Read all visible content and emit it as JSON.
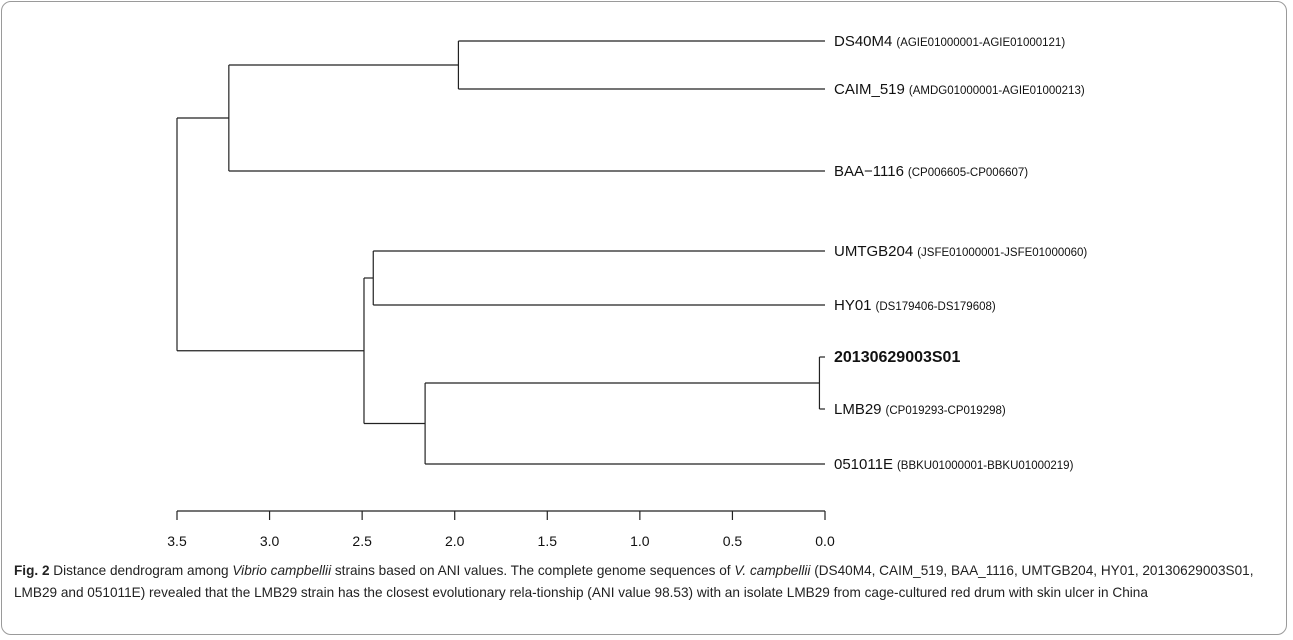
{
  "chart_data": {
    "type": "dendrogram",
    "axis": {
      "ticks": [
        "3.5",
        "3.0",
        "2.5",
        "2.0",
        "1.5",
        "1.0",
        "0.5",
        "0.0"
      ],
      "range": [
        3.5,
        0.0
      ]
    },
    "leaves": [
      {
        "id": "ds40m4",
        "name": "DS40M4",
        "accession": "(AGIE01000001-AGIE01000121)",
        "bold": false
      },
      {
        "id": "caim519",
        "name": "CAIM_519",
        "accession": "(AMDG01000001-AGIE01000213)",
        "bold": false
      },
      {
        "id": "baa1116",
        "name": "BAA−1116",
        "accession": "(CP006605-CP006607)",
        "bold": false
      },
      {
        "id": "umtgb204",
        "name": "UMTGB204",
        "accession": "(JSFE01000001-JSFE01000060)",
        "bold": false
      },
      {
        "id": "hy01",
        "name": "HY01",
        "accession": "(DS179406-DS179608)",
        "bold": false
      },
      {
        "id": "s01",
        "name": "20130629003S01",
        "accession": "",
        "bold": true
      },
      {
        "id": "lmb29",
        "name": "LMB29",
        "accession": "(CP019293-CP019298)",
        "bold": false
      },
      {
        "id": "e051011",
        "name": "051011E",
        "accession": "(BBKU01000001-BBKU01000219)",
        "bold": false
      }
    ],
    "merges": [
      {
        "id": "m1",
        "height": 1.98,
        "children": [
          "ds40m4",
          "caim519"
        ]
      },
      {
        "id": "m2",
        "height": 3.22,
        "children": [
          "m1",
          "baa1116"
        ]
      },
      {
        "id": "m3",
        "height": 2.44,
        "children": [
          "umtgb204",
          "hy01"
        ]
      },
      {
        "id": "m4",
        "height": 0.03,
        "children": [
          "s01",
          "lmb29"
        ]
      },
      {
        "id": "m5",
        "height": 2.16,
        "children": [
          "m4",
          "e051011"
        ]
      },
      {
        "id": "m6",
        "height": 2.49,
        "children": [
          "m3",
          "m5"
        ]
      },
      {
        "id": "m7",
        "height": 3.5,
        "children": [
          "m2",
          "m6"
        ]
      }
    ]
  },
  "caption": {
    "fig_label": "Fig. 2",
    "text_1": " Distance dendrogram among ",
    "italic_1": "Vibrio campbellii",
    "text_2": " strains based on ANI values. The complete genome sequences of ",
    "italic_2": "V. campbellii",
    "text_3": " (DS40M4, CAIM_519, BAA_1116, UMTGB204, HY01, 20130629003S01, LMB29 and 051011E) revealed that the LMB29 strain has the closest evolutionary rela-tionship (ANI value 98.53) with an isolate LMB29 from cage-cultured red drum with skin ulcer in China"
  }
}
